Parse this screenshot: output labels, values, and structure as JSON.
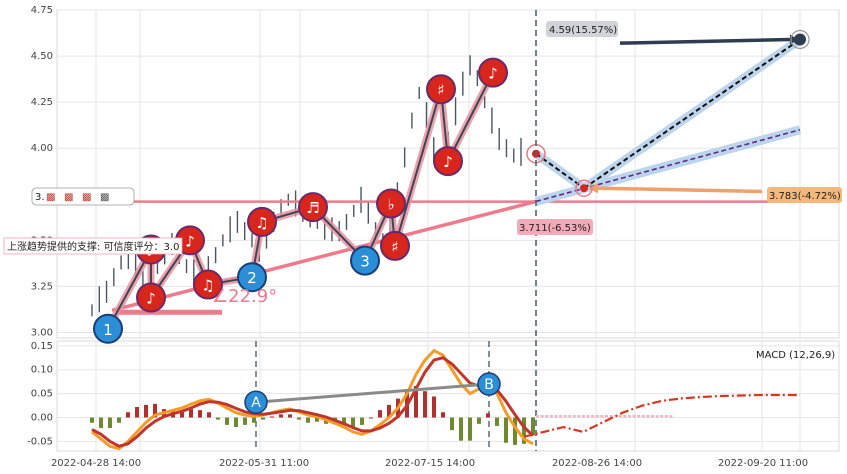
{
  "chart_data": [
    {
      "type": "line",
      "ylim": [
        2.97,
        4.75
      ],
      "y_ticks": [
        "4.75",
        "4.50",
        "4.25",
        "4.00",
        "3.50",
        "3.25",
        "3.00"
      ],
      "x_tick_labels": [
        "2022-04-28 14:00",
        "2022-05-31 11:00",
        "2022-07-15 14:00",
        "2022-08-26 14:00",
        "2022-09-20 11:00"
      ],
      "grid": true,
      "price_series": [
        3.12,
        3.18,
        3.22,
        3.3,
        3.38,
        3.42,
        3.36,
        3.28,
        3.3,
        3.35,
        3.44,
        3.48,
        3.42,
        3.36,
        3.32,
        3.3,
        3.36,
        3.42,
        3.5,
        3.56,
        3.6,
        3.55,
        3.5,
        3.46,
        3.52,
        3.6,
        3.68,
        3.72,
        3.7,
        3.66,
        3.62,
        3.6,
        3.58,
        3.56,
        3.55,
        3.6,
        3.66,
        3.72,
        3.65,
        3.55,
        3.5,
        3.62,
        3.75,
        3.95,
        4.15,
        4.3,
        4.18,
        4.0,
        3.92,
        4.05,
        4.2,
        4.35,
        4.45,
        4.38,
        4.25,
        4.15,
        4.05,
        4.0,
        3.96,
        3.98
      ],
      "wave_points": [
        {
          "label": "1",
          "value": 3.02
        },
        {
          "label": "♪",
          "value": 3.45
        },
        {
          "label": "♪",
          "value": 3.19
        },
        {
          "label": "♪",
          "value": 3.5
        },
        {
          "label": "♫",
          "value": 3.26
        },
        {
          "label": "2",
          "value": 3.3
        },
        {
          "label": "♫",
          "value": 3.6
        },
        {
          "label": "♬",
          "value": 3.68
        },
        {
          "label": "3",
          "value": 3.39
        },
        {
          "label": "♭",
          "value": 3.7
        },
        {
          "label": "♯",
          "value": 3.47
        },
        {
          "label": "♯",
          "value": 4.32
        },
        {
          "label": "♪",
          "value": 3.93
        },
        {
          "label": "♪",
          "value": 4.41
        }
      ],
      "support_angle_label": "∠22.9°",
      "support_text": "上涨趋势提供的支撑: 可信度评分：3.0",
      "horizontal_level_value": 3.71,
      "current_value": 3.97,
      "projections": {
        "up": {
          "label": "4.59(15.57%)",
          "value": 4.59
        },
        "mid": {
          "label": "3.783(-4.72%)",
          "value": 3.783
        },
        "low": {
          "label": "3.711(-6.53%)",
          "value": 3.711
        }
      },
      "clipped_label": "3.",
      "legend_glyphs": [
        "▩",
        "▩",
        "▩",
        "▩"
      ]
    },
    {
      "type": "line",
      "title": "MACD (12,26,9)",
      "ylim": [
        -0.07,
        0.16
      ],
      "y_ticks": [
        "0.15",
        "0.10",
        "0.05",
        "0.00",
        "-0.05"
      ],
      "dif": [
        -0.03,
        -0.045,
        -0.06,
        -0.065,
        -0.05,
        -0.03,
        -0.01,
        0.005,
        0.01,
        0.015,
        0.02,
        0.028,
        0.035,
        0.038,
        0.03,
        0.02,
        0.01,
        0.005,
        0.003,
        0.005,
        0.01,
        0.015,
        0.018,
        0.012,
        0.005,
        0.002,
        -0.005,
        -0.012,
        -0.02,
        -0.03,
        -0.035,
        -0.028,
        -0.015,
        0.0,
        0.02,
        0.05,
        0.09,
        0.12,
        0.14,
        0.13,
        0.1,
        0.07,
        0.05,
        0.06,
        0.07,
        0.05,
        0.01,
        -0.02,
        -0.045,
        -0.055
      ],
      "dea": [
        -0.025,
        -0.035,
        -0.05,
        -0.06,
        -0.055,
        -0.04,
        -0.022,
        -0.008,
        0.002,
        0.008,
        0.013,
        0.02,
        0.028,
        0.033,
        0.032,
        0.027,
        0.019,
        0.012,
        0.008,
        0.007,
        0.009,
        0.012,
        0.015,
        0.014,
        0.01,
        0.006,
        0.001,
        -0.006,
        -0.013,
        -0.021,
        -0.028,
        -0.028,
        -0.022,
        -0.012,
        0.002,
        0.025,
        0.06,
        0.095,
        0.12,
        0.125,
        0.112,
        0.092,
        0.072,
        0.066,
        0.066,
        0.058,
        0.034,
        0.006,
        -0.02,
        -0.038
      ],
      "projection_dea": [
        -0.04,
        -0.03,
        -0.02,
        -0.03,
        -0.01,
        0.01,
        0.025,
        0.035,
        0.04,
        0.043,
        0.045,
        0.046,
        0.047,
        0.047,
        0.047
      ],
      "divergence_points": [
        {
          "label": "A",
          "value": 0.032
        },
        {
          "label": "B",
          "value": 0.07
        }
      ]
    }
  ]
}
